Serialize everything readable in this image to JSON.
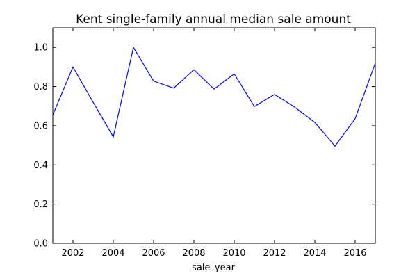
{
  "chart_data": {
    "type": "line",
    "title": "Kent single-family annual median sale amount",
    "xlabel": "sale_year",
    "ylabel": "",
    "xlim": [
      2001,
      2017
    ],
    "ylim": [
      0.0,
      1.1
    ],
    "x_ticks": [
      2002,
      2004,
      2006,
      2008,
      2010,
      2012,
      2014,
      2016
    ],
    "x_tick_labels": [
      "2002",
      "2004",
      "2006",
      "2008",
      "2010",
      "2012",
      "2014",
      "2016"
    ],
    "y_ticks": [
      0.0,
      0.2,
      0.4,
      0.6,
      0.8,
      1.0
    ],
    "y_tick_labels": [
      "0.0",
      "0.2",
      "0.4",
      "0.6",
      "0.8",
      "1.0"
    ],
    "grid": false,
    "series": [
      {
        "color": "#0000ff",
        "x": [
          2001,
          2002,
          2003,
          2004,
          2005,
          2006,
          2007,
          2008,
          2009,
          2010,
          2011,
          2012,
          2013,
          2014,
          2015,
          2016,
          2017
        ],
        "values": [
          0.655,
          0.9,
          0.72,
          0.543,
          1.0,
          0.828,
          0.792,
          0.886,
          0.787,
          0.865,
          0.698,
          0.76,
          0.695,
          0.617,
          0.496,
          0.636,
          0.92
        ]
      }
    ]
  }
}
